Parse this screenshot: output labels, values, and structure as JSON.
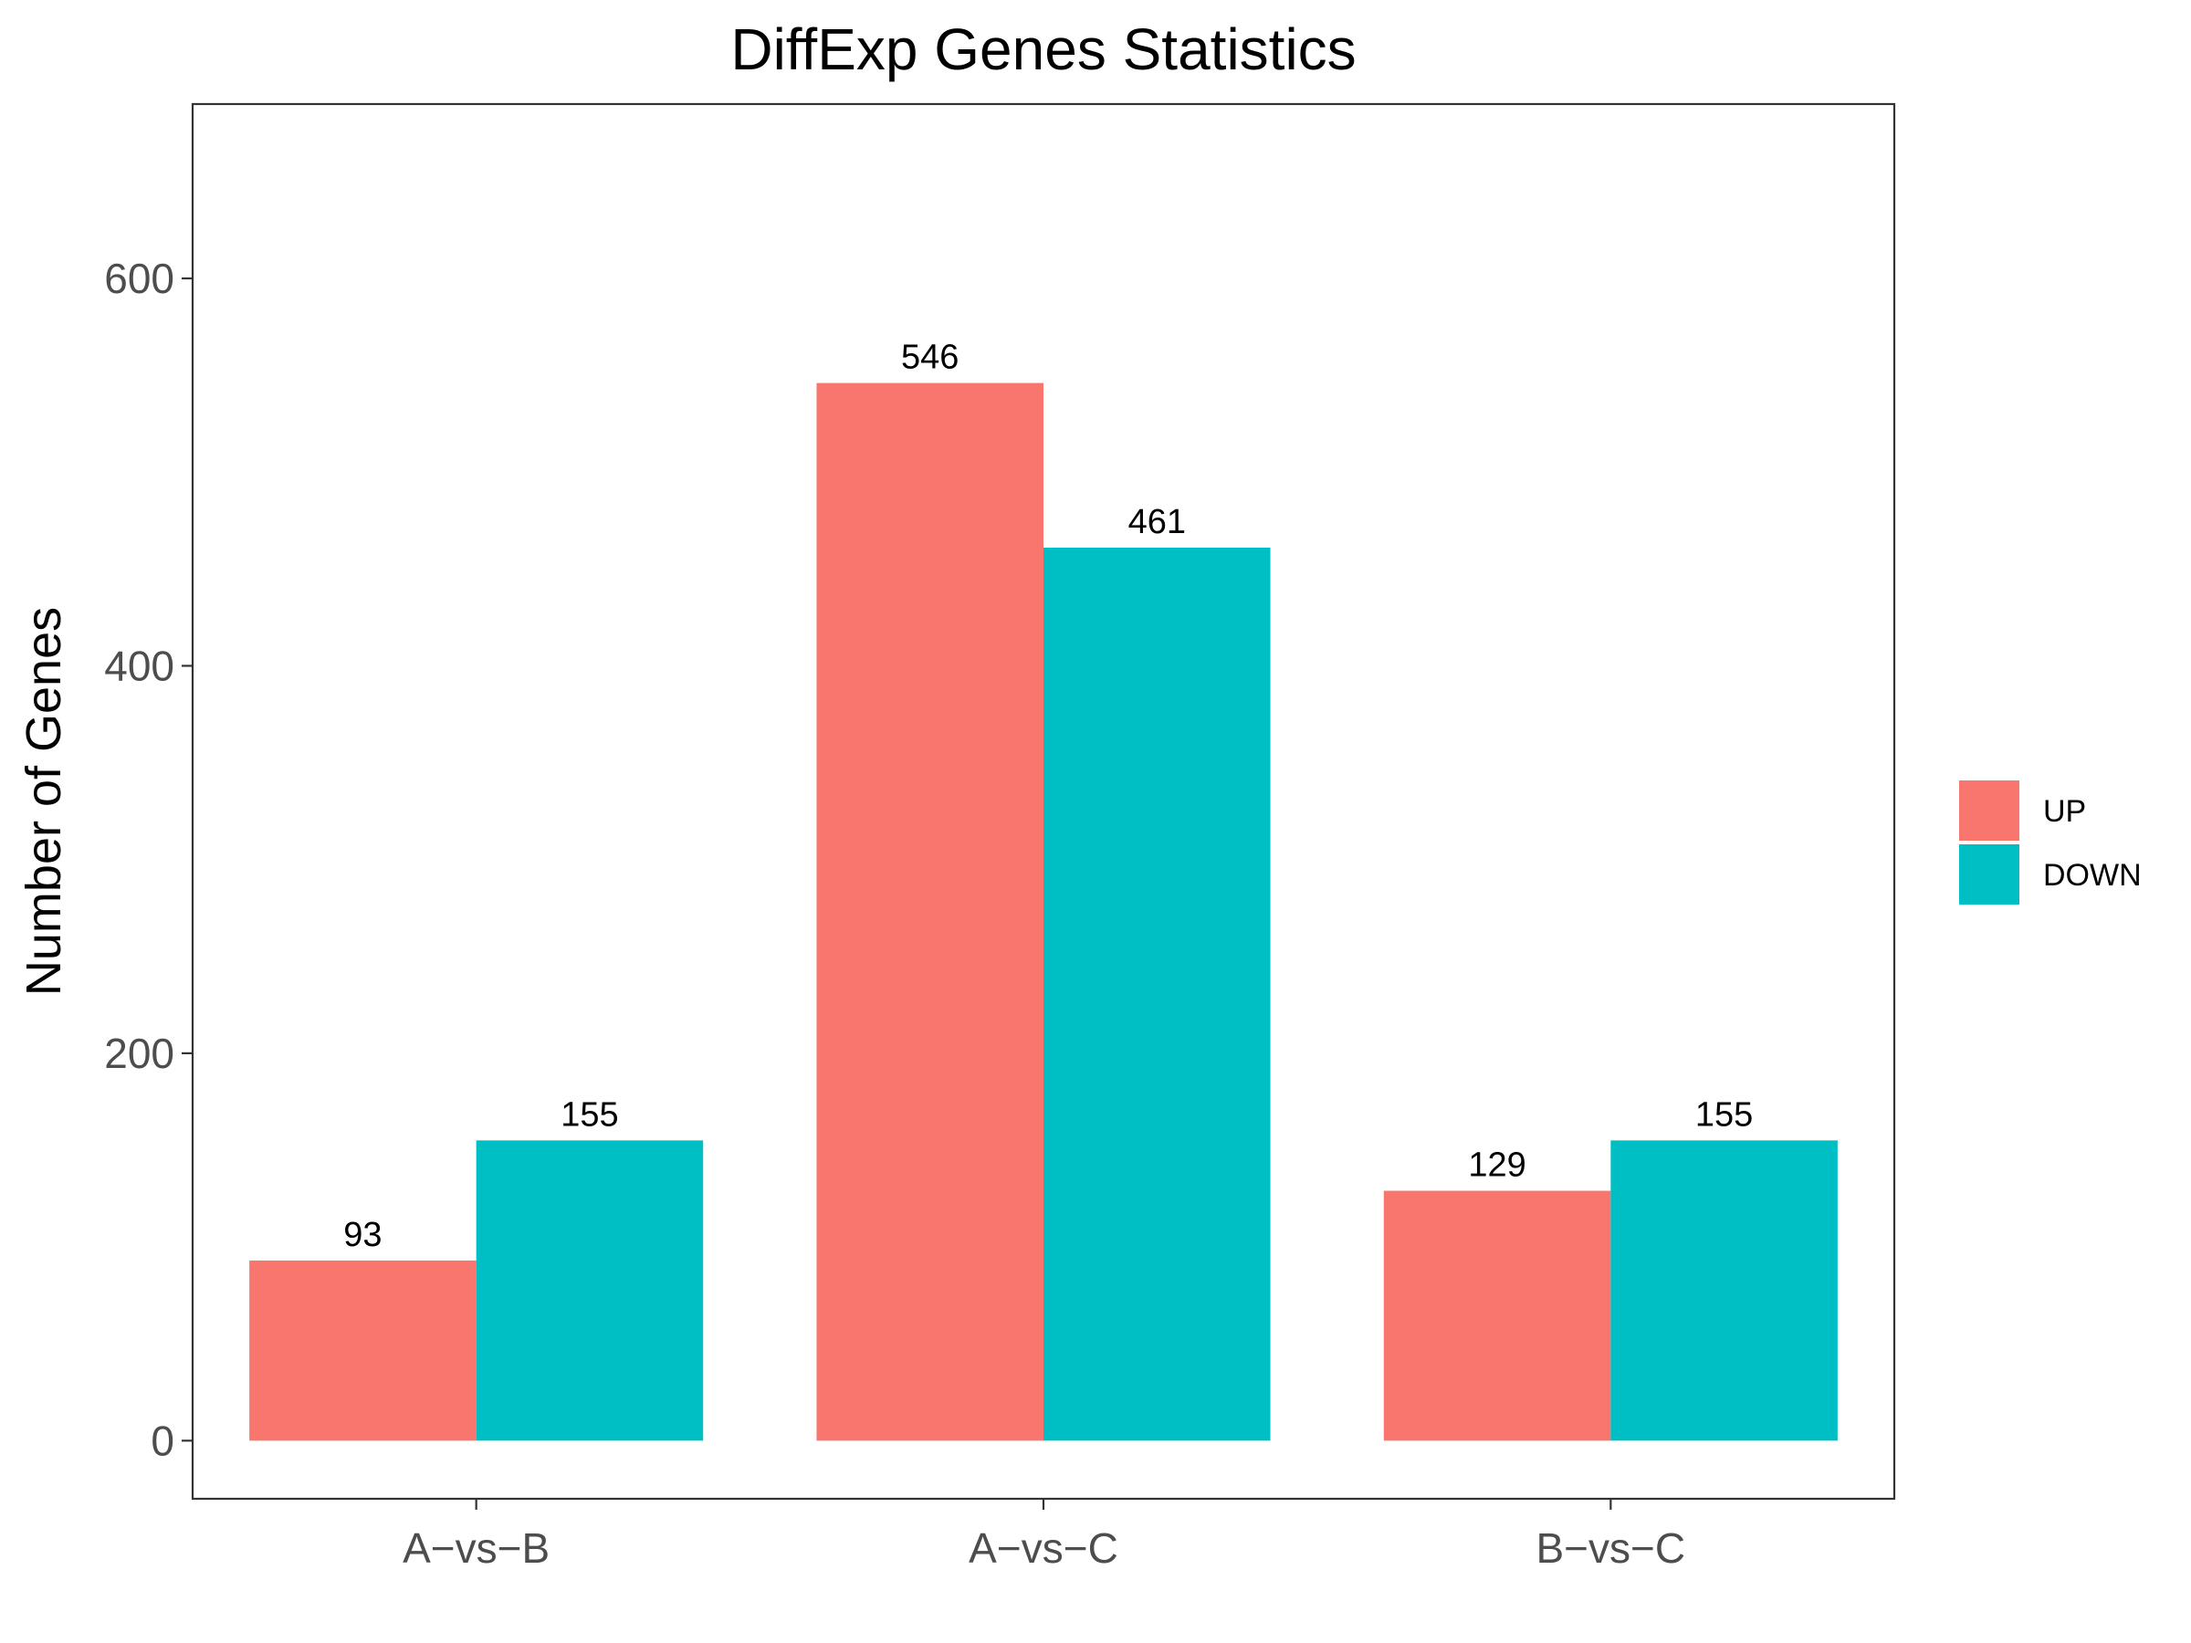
{
  "chart_data": {
    "type": "bar",
    "title": "DiffExp Genes Statistics",
    "xlabel": "",
    "ylabel": "Number of Genes",
    "categories": [
      "A−vs−B",
      "A−vs−C",
      "B−vs−C"
    ],
    "series": [
      {
        "name": "UP",
        "color": "#f8766d",
        "values": [
          93,
          546,
          129
        ]
      },
      {
        "name": "DOWN",
        "color": "#00bfc4",
        "values": [
          155,
          461,
          155
        ]
      }
    ],
    "ylim": [
      -30,
      690
    ],
    "yticks": [
      0,
      200,
      400,
      600
    ],
    "yticks_labels": [
      "0",
      "200",
      "400",
      "600"
    ],
    "grid": false,
    "legend_position": "right",
    "data_labels": true
  }
}
